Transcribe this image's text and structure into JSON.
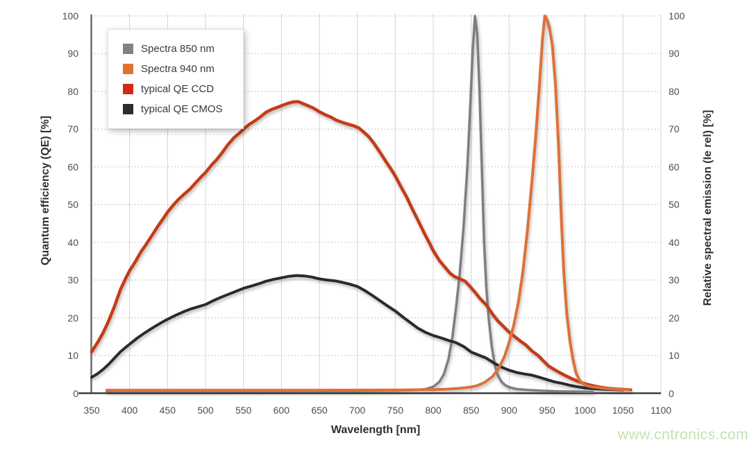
{
  "watermark": "www.cntronics.com",
  "chart_data": {
    "type": "line",
    "title": "",
    "xlabel": "Wavelength [nm]",
    "ylabel_left": "Quantum efficiency (QE) [%]",
    "ylabel_right": "Relative spectral emission (Ie rel) [%]",
    "xlim": [
      350,
      1100
    ],
    "ylim": [
      0,
      100
    ],
    "x_ticks": [
      350,
      400,
      450,
      500,
      550,
      600,
      650,
      700,
      750,
      800,
      850,
      900,
      950,
      1000,
      1050,
      1100
    ],
    "y_ticks": [
      0,
      10,
      20,
      30,
      40,
      50,
      60,
      70,
      80,
      90,
      100
    ],
    "grid": {
      "vertical": "solid",
      "horizontal": "dotted"
    },
    "legend": {
      "position": "top-left",
      "entries": [
        {
          "label": "Spectra 850 nm",
          "color": "#808386"
        },
        {
          "label": "Spectra 940 nm",
          "color": "#e0712f"
        },
        {
          "label": "typical QE CCD",
          "color": "#d02a16"
        },
        {
          "label": "typical QE CMOS",
          "color": "#2a2c2e"
        }
      ]
    },
    "series": [
      {
        "name": "Spectra 850 nm",
        "color": "#7b7e81",
        "width": 3.5,
        "points": [
          [
            370,
            0.5
          ],
          [
            500,
            0.5
          ],
          [
            620,
            0.55
          ],
          [
            700,
            0.6
          ],
          [
            750,
            0.7
          ],
          [
            780,
            0.85
          ],
          [
            790,
            1.1
          ],
          [
            800,
            1.7
          ],
          [
            808,
            3
          ],
          [
            814,
            5
          ],
          [
            820,
            9
          ],
          [
            825,
            14.5
          ],
          [
            830,
            22.5
          ],
          [
            835,
            32
          ],
          [
            840,
            44
          ],
          [
            845,
            60
          ],
          [
            849,
            77
          ],
          [
            852,
            91
          ],
          [
            855,
            100
          ],
          [
            858,
            95
          ],
          [
            861,
            80
          ],
          [
            864,
            60
          ],
          [
            867,
            40
          ],
          [
            870,
            28
          ],
          [
            873,
            20
          ],
          [
            877,
            12.5
          ],
          [
            881,
            7.5
          ],
          [
            885,
            4.8
          ],
          [
            890,
            3
          ],
          [
            895,
            2.1
          ],
          [
            900,
            1.6
          ],
          [
            910,
            1.1
          ],
          [
            925,
            0.85
          ],
          [
            945,
            0.65
          ],
          [
            965,
            0.5
          ],
          [
            990,
            0.4
          ],
          [
            1010,
            0.35
          ]
        ]
      },
      {
        "name": "typical QE CMOS",
        "color": "#2a2c2e",
        "width": 4,
        "points": [
          [
            350,
            4.2
          ],
          [
            358,
            5.2
          ],
          [
            365,
            6.3
          ],
          [
            372,
            7.6
          ],
          [
            380,
            9.3
          ],
          [
            388,
            11
          ],
          [
            395,
            12.2
          ],
          [
            400,
            13
          ],
          [
            410,
            14.6
          ],
          [
            420,
            16
          ],
          [
            430,
            17.3
          ],
          [
            440,
            18.5
          ],
          [
            450,
            19.6
          ],
          [
            460,
            20.6
          ],
          [
            470,
            21.5
          ],
          [
            480,
            22.3
          ],
          [
            490,
            22.9
          ],
          [
            500,
            23.5
          ],
          [
            510,
            24.5
          ],
          [
            520,
            25.4
          ],
          [
            530,
            26.2
          ],
          [
            540,
            27
          ],
          [
            550,
            27.8
          ],
          [
            560,
            28.4
          ],
          [
            570,
            29
          ],
          [
            580,
            29.7
          ],
          [
            590,
            30.2
          ],
          [
            600,
            30.6
          ],
          [
            610,
            31
          ],
          [
            620,
            31.2
          ],
          [
            630,
            31.1
          ],
          [
            640,
            30.8
          ],
          [
            650,
            30.3
          ],
          [
            660,
            30
          ],
          [
            670,
            29.8
          ],
          [
            680,
            29.4
          ],
          [
            690,
            28.9
          ],
          [
            700,
            28.3
          ],
          [
            710,
            27.2
          ],
          [
            720,
            25.9
          ],
          [
            730,
            24.5
          ],
          [
            740,
            23.1
          ],
          [
            750,
            21.8
          ],
          [
            760,
            20.2
          ],
          [
            770,
            18.7
          ],
          [
            780,
            17.2
          ],
          [
            790,
            16.1
          ],
          [
            800,
            15.3
          ],
          [
            810,
            14.7
          ],
          [
            820,
            14
          ],
          [
            830,
            13.4
          ],
          [
            840,
            12.4
          ],
          [
            850,
            10.9
          ],
          [
            860,
            10.1
          ],
          [
            870,
            9.3
          ],
          [
            880,
            8
          ],
          [
            890,
            6.9
          ],
          [
            900,
            6.1
          ],
          [
            910,
            5.5
          ],
          [
            920,
            5.1
          ],
          [
            930,
            4.8
          ],
          [
            940,
            4.2
          ],
          [
            950,
            3.6
          ],
          [
            960,
            3
          ],
          [
            970,
            2.6
          ],
          [
            980,
            2.1
          ],
          [
            990,
            1.7
          ],
          [
            1000,
            1.4
          ],
          [
            1012,
            1.2
          ],
          [
            1025,
            1.05
          ],
          [
            1038,
            0.95
          ],
          [
            1050,
            0.85
          ]
        ]
      },
      {
        "name": "typical QE CCD",
        "color": "#c43a19",
        "width": 4.5,
        "points": [
          [
            350,
            11
          ],
          [
            358,
            13.5
          ],
          [
            365,
            16
          ],
          [
            372,
            19
          ],
          [
            380,
            23
          ],
          [
            388,
            27.5
          ],
          [
            395,
            30.5
          ],
          [
            400,
            32.5
          ],
          [
            408,
            35
          ],
          [
            415,
            37.5
          ],
          [
            422,
            39.5
          ],
          [
            430,
            42
          ],
          [
            438,
            44.5
          ],
          [
            445,
            46.5
          ],
          [
            450,
            48
          ],
          [
            458,
            50
          ],
          [
            465,
            51.5
          ],
          [
            472,
            52.8
          ],
          [
            480,
            54.2
          ],
          [
            488,
            56
          ],
          [
            495,
            57.5
          ],
          [
            500,
            58.5
          ],
          [
            508,
            60.5
          ],
          [
            515,
            62
          ],
          [
            522,
            63.8
          ],
          [
            530,
            66
          ],
          [
            538,
            67.8
          ],
          [
            545,
            69
          ],
          [
            550,
            70
          ],
          [
            558,
            71.3
          ],
          [
            565,
            72.2
          ],
          [
            572,
            73.2
          ],
          [
            580,
            74.5
          ],
          [
            588,
            75.3
          ],
          [
            595,
            75.8
          ],
          [
            600,
            76.2
          ],
          [
            608,
            76.8
          ],
          [
            615,
            77.2
          ],
          [
            622,
            77.3
          ],
          [
            628,
            76.8
          ],
          [
            635,
            76.2
          ],
          [
            642,
            75.6
          ],
          [
            650,
            74.6
          ],
          [
            658,
            73.8
          ],
          [
            665,
            73.2
          ],
          [
            672,
            72.4
          ],
          [
            680,
            71.8
          ],
          [
            688,
            71.3
          ],
          [
            695,
            70.9
          ],
          [
            702,
            70.3
          ],
          [
            708,
            69.3
          ],
          [
            715,
            68
          ],
          [
            722,
            66.2
          ],
          [
            730,
            63.8
          ],
          [
            738,
            61.3
          ],
          [
            745,
            59.2
          ],
          [
            750,
            57.6
          ],
          [
            758,
            54.5
          ],
          [
            765,
            52
          ],
          [
            772,
            49
          ],
          [
            780,
            45.8
          ],
          [
            788,
            42.5
          ],
          [
            795,
            39.8
          ],
          [
            800,
            37.8
          ],
          [
            808,
            35.2
          ],
          [
            815,
            33.5
          ],
          [
            822,
            31.8
          ],
          [
            828,
            30.9
          ],
          [
            835,
            30.3
          ],
          [
            842,
            29.7
          ],
          [
            848,
            28.4
          ],
          [
            855,
            26.8
          ],
          [
            862,
            25
          ],
          [
            870,
            23.4
          ],
          [
            878,
            21
          ],
          [
            885,
            19.2
          ],
          [
            892,
            17.8
          ],
          [
            900,
            16.2
          ],
          [
            908,
            14.9
          ],
          [
            915,
            13.8
          ],
          [
            922,
            12.8
          ],
          [
            930,
            11.2
          ],
          [
            938,
            10
          ],
          [
            945,
            8.6
          ],
          [
            952,
            7.2
          ],
          [
            960,
            6.2
          ],
          [
            968,
            5.3
          ],
          [
            975,
            4.6
          ],
          [
            982,
            3.9
          ],
          [
            990,
            3.2
          ],
          [
            1000,
            2.5
          ],
          [
            1010,
            2
          ],
          [
            1020,
            1.6
          ],
          [
            1030,
            1.3
          ],
          [
            1042,
            1.1
          ],
          [
            1052,
            1
          ],
          [
            1060,
            0.9
          ]
        ]
      },
      {
        "name": "Spectra 940 nm",
        "color": "#dd7138",
        "width": 4,
        "points": [
          [
            370,
            0.8
          ],
          [
            500,
            0.8
          ],
          [
            650,
            0.8
          ],
          [
            750,
            0.85
          ],
          [
            800,
            0.95
          ],
          [
            820,
            1.1
          ],
          [
            835,
            1.3
          ],
          [
            848,
            1.6
          ],
          [
            858,
            2
          ],
          [
            868,
            2.9
          ],
          [
            878,
            4.4
          ],
          [
            886,
            6.5
          ],
          [
            894,
            9.8
          ],
          [
            900,
            13.5
          ],
          [
            906,
            18
          ],
          [
            912,
            24
          ],
          [
            918,
            32
          ],
          [
            924,
            43
          ],
          [
            930,
            56
          ],
          [
            935,
            68
          ],
          [
            940,
            82
          ],
          [
            944,
            94
          ],
          [
            947,
            100
          ],
          [
            950,
            99
          ],
          [
            953,
            97
          ],
          [
            957,
            92
          ],
          [
            961,
            82
          ],
          [
            965,
            66
          ],
          [
            969,
            45
          ],
          [
            972,
            32
          ],
          [
            976,
            21
          ],
          [
            980,
            14
          ],
          [
            984,
            9
          ],
          [
            988,
            5.5
          ],
          [
            993,
            3.3
          ],
          [
            998,
            2.4
          ],
          [
            1004,
            1.9
          ],
          [
            1012,
            1.6
          ],
          [
            1022,
            1.35
          ],
          [
            1034,
            1.15
          ],
          [
            1046,
            1
          ],
          [
            1058,
            0.9
          ]
        ]
      }
    ]
  }
}
